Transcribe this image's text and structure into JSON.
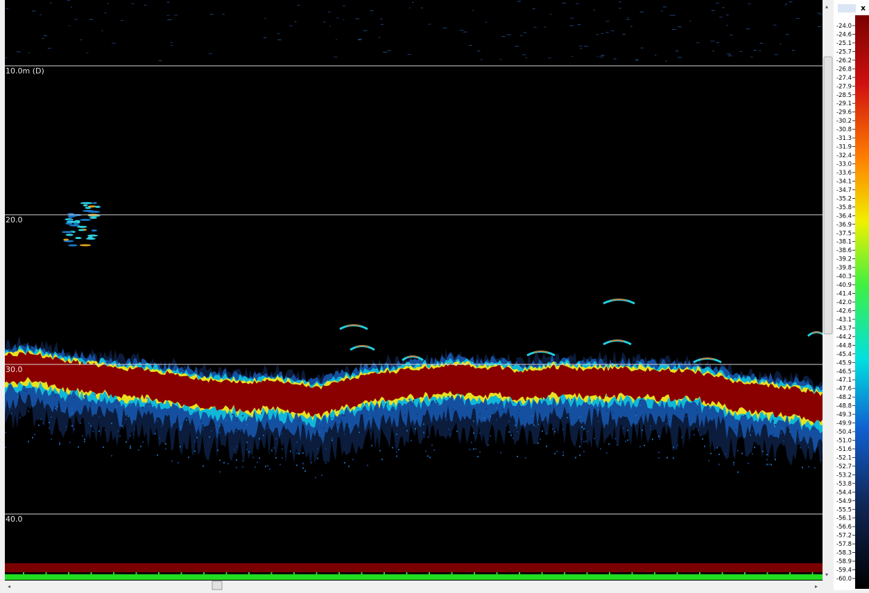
{
  "depth_labels": [
    "10.0m (D)",
    "20.0",
    "30.0",
    "40.0"
  ],
  "scale_labels": [
    "-24.0",
    "-24.6",
    "-25.1",
    "-25.7",
    "-26.2",
    "-26.8",
    "-27.4",
    "-27.9",
    "-28.5",
    "-29.1",
    "-29.6",
    "-30.2",
    "-30.8",
    "-31.3",
    "-31.9",
    "-32.4",
    "-33.0",
    "-33.6",
    "-34.1",
    "-34.7",
    "-35.2",
    "-35.8",
    "-36.4",
    "-36.9",
    "-37.5",
    "-38.1",
    "-38.6",
    "-39.2",
    "-39.8",
    "-40.3",
    "-40.9",
    "-41.4",
    "-42.0",
    "-42.6",
    "-43.1",
    "-43.7",
    "-44.2",
    "-44.8",
    "-45.4",
    "-45.9",
    "-46.5",
    "-47.1",
    "-47.6",
    "-48.2",
    "-48.8",
    "-49.3",
    "-49.9",
    "-50.4",
    "-51.0",
    "-51.6",
    "-52.1",
    "-52.7",
    "-53.2",
    "-53.8",
    "-54.4",
    "-54.9",
    "-55.5",
    "-56.1",
    "-56.6",
    "-57.2",
    "-57.8",
    "-58.3",
    "-58.9",
    "-59.4",
    "-60.0"
  ],
  "close_button": "x"
}
